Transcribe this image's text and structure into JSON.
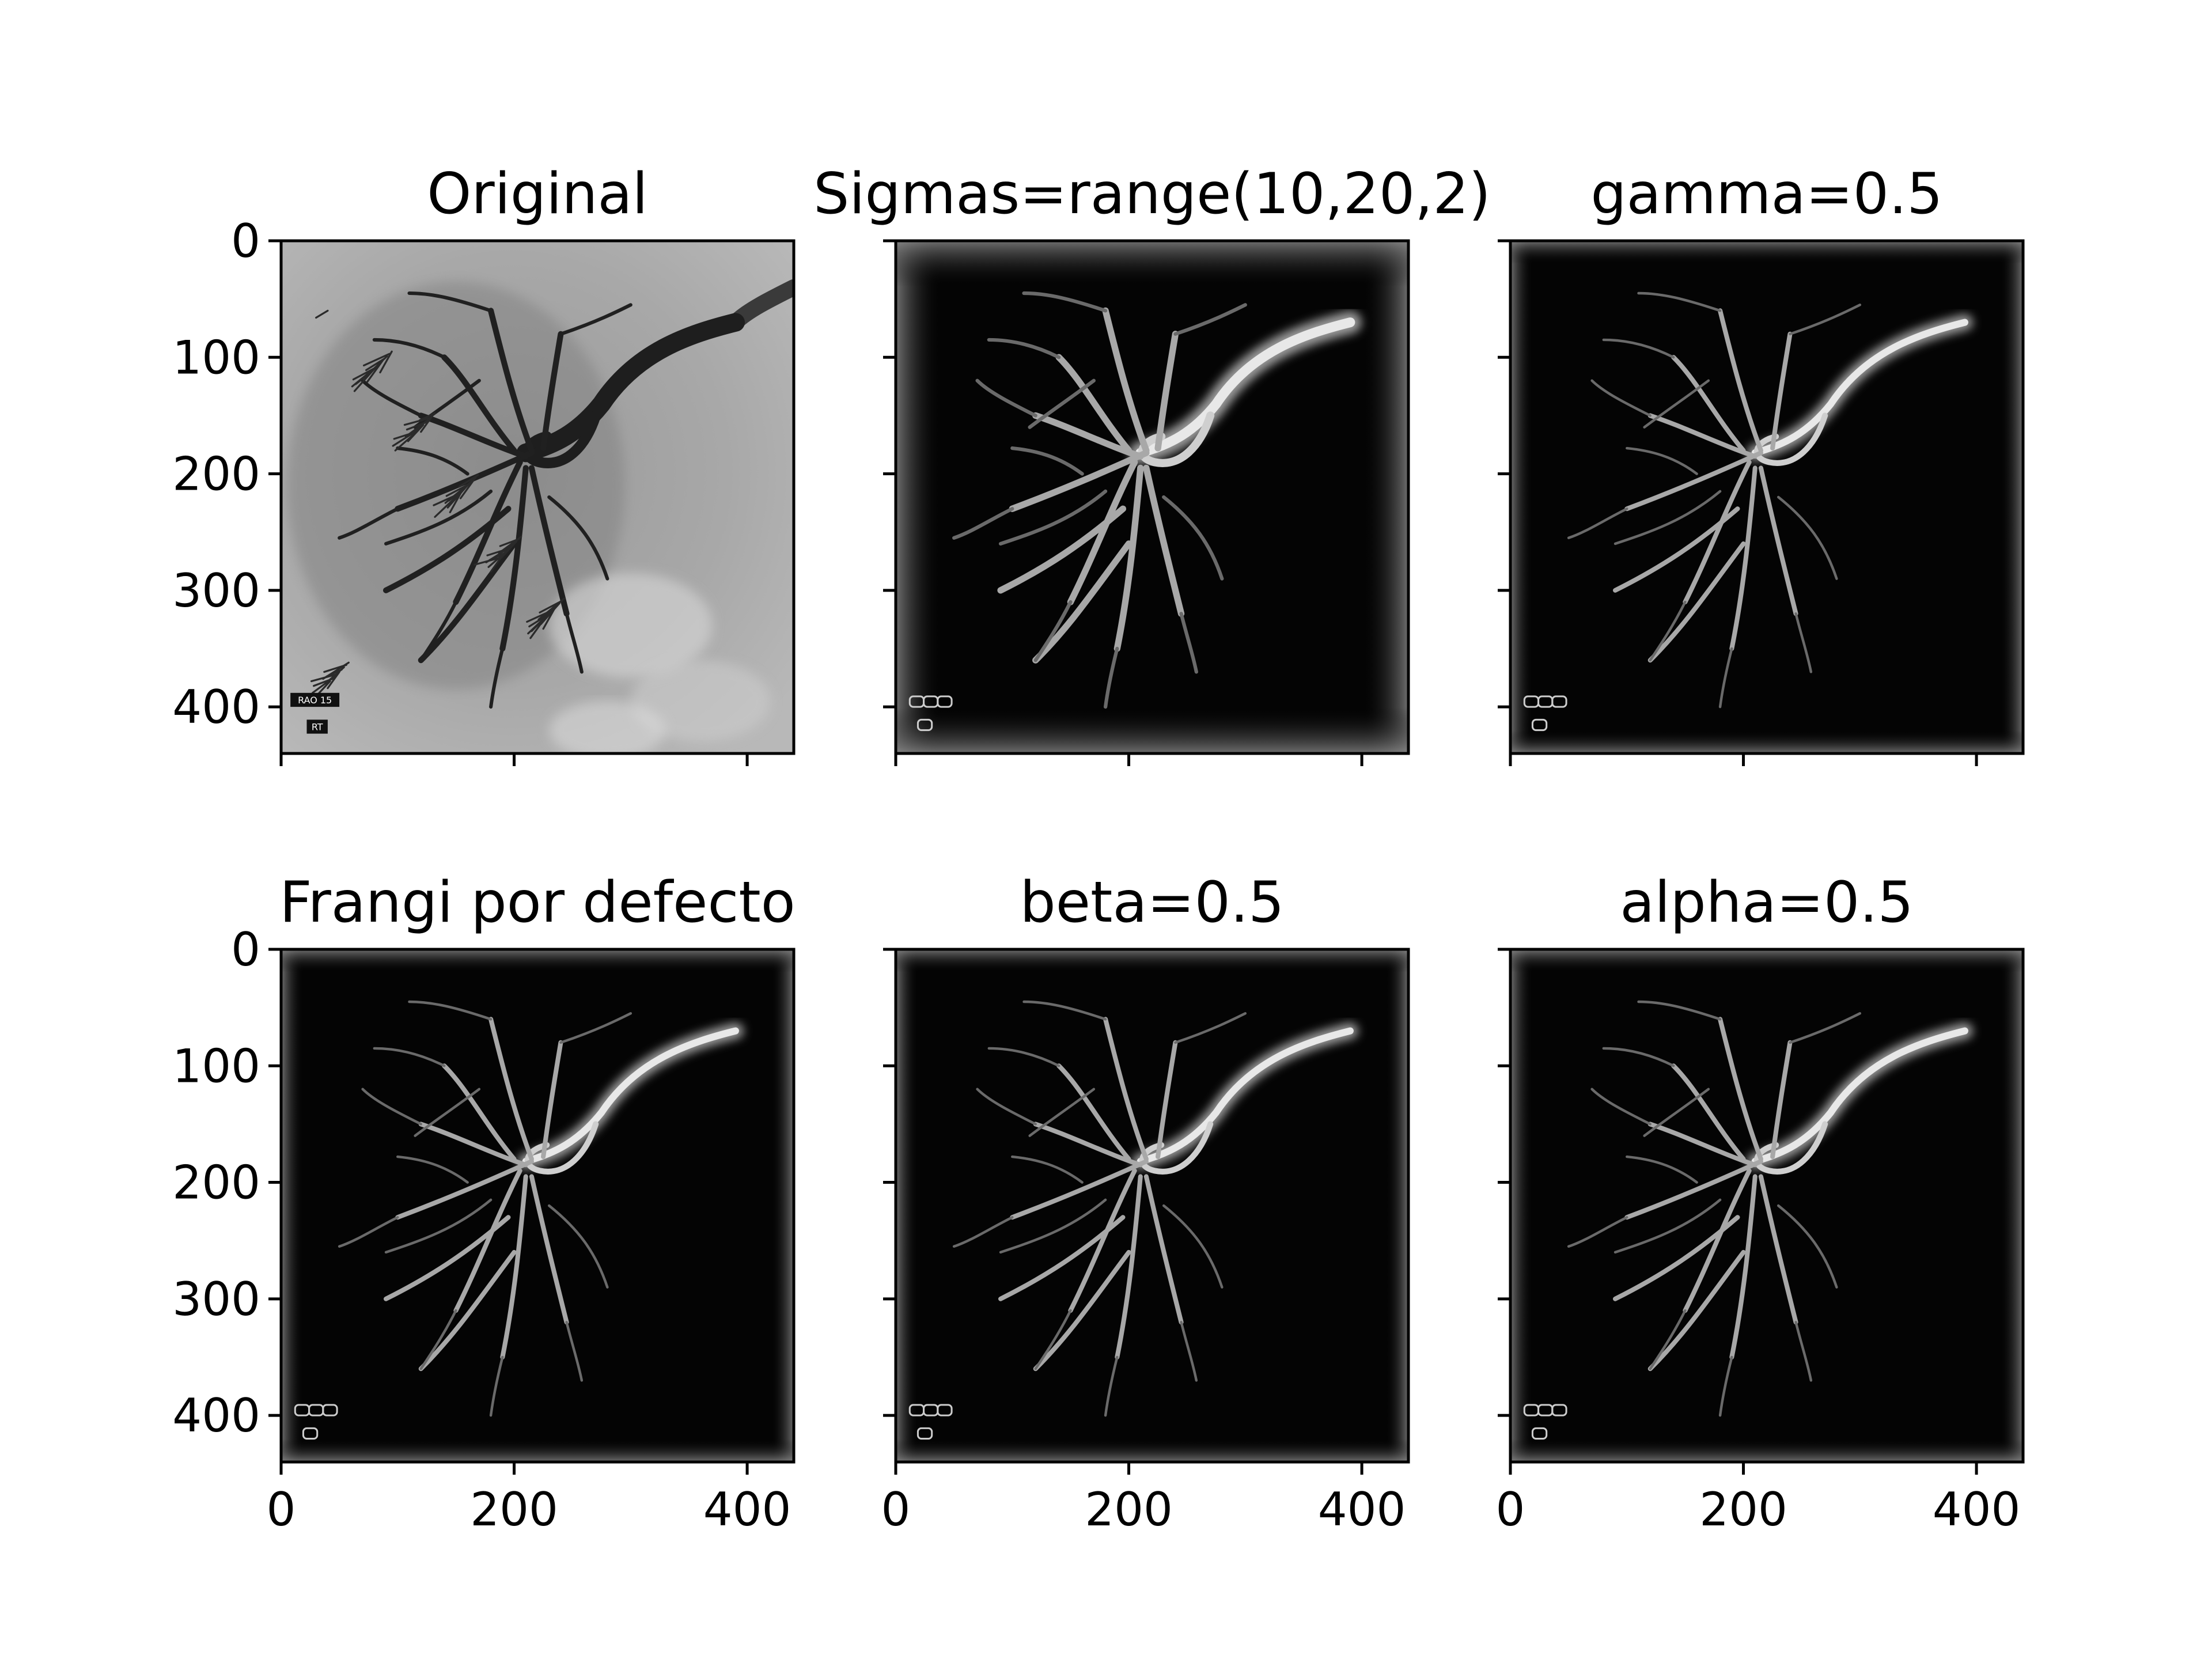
{
  "figure": {
    "panels": [
      {
        "id": "original",
        "title": "Original",
        "kind": "angiogram",
        "overlay": [
          "RAO 15",
          "RT"
        ],
        "show_ylabels": true,
        "show_xlabels": false
      },
      {
        "id": "sigmas",
        "title": "Sigmas=range(10,20,2)",
        "kind": "frangi",
        "show_ylabels": false,
        "show_xlabels": false
      },
      {
        "id": "gamma",
        "title": "gamma=0.5",
        "kind": "frangi",
        "show_ylabels": false,
        "show_xlabels": false
      },
      {
        "id": "default",
        "title": "Frangi por defecto",
        "kind": "frangi",
        "show_ylabels": true,
        "show_xlabels": true
      },
      {
        "id": "beta",
        "title": "beta=0.5",
        "kind": "frangi",
        "show_ylabels": false,
        "show_xlabels": true
      },
      {
        "id": "alpha",
        "title": "alpha=0.5",
        "kind": "frangi",
        "show_ylabels": false,
        "show_xlabels": true
      }
    ],
    "x_ticks": [
      "0",
      "200",
      "400"
    ],
    "y_ticks": [
      "0",
      "100",
      "200",
      "300",
      "400"
    ],
    "image_extent": [
      0,
      440
    ],
    "colormap": "gray"
  }
}
